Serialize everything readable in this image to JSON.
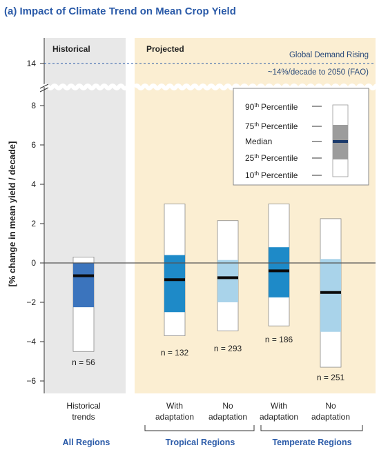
{
  "chart_data": {
    "type": "box",
    "title": "(a) Impact of Climate Trend on Mean Crop Yield",
    "ylabel": "[% change in mean yield / decade]",
    "yticks_lower": [
      -6,
      -4,
      -2,
      0,
      2,
      4,
      6,
      8
    ],
    "ytick_upper": 14,
    "ylim": [
      -6.5,
      14.5
    ],
    "panels": [
      {
        "label": "Historical"
      },
      {
        "label": "Projected"
      }
    ],
    "reference_line": {
      "value": 14,
      "label_line1": "Global Demand Rising",
      "label_line2": "~14%/decade to 2050 (FAO)"
    },
    "legend": {
      "p90": "90",
      "p75": "75",
      "th": "th",
      "percentile": "Percentile",
      "median": "Median",
      "p25": "25",
      "p10": "10"
    },
    "boxes": [
      {
        "id": "historical",
        "label_line1": "Historical",
        "label_line2": "trends",
        "n_label": "n = 56",
        "p10": -4.5,
        "p25": -2.25,
        "median": -0.65,
        "p75": 0.0,
        "p90": 0.3,
        "color": "#3b74bd"
      },
      {
        "id": "trop-adapt",
        "label_line1": "With",
        "label_line2": "adaptation",
        "n_label": "n = 132",
        "p10": -3.7,
        "p25": -2.5,
        "median": -0.85,
        "p75": 0.4,
        "p90": 3.0,
        "color": "#1e8ac8"
      },
      {
        "id": "trop-noadapt",
        "label_line1": "No",
        "label_line2": "adaptation",
        "n_label": "n = 293",
        "p10": -3.45,
        "p25": -2.0,
        "median": -0.75,
        "p75": 0.15,
        "p90": 2.15,
        "color": "#a9d3ea"
      },
      {
        "id": "temp-adapt",
        "label_line1": "With",
        "label_line2": "adaptation",
        "n_label": "n = 186",
        "p10": -3.2,
        "p25": -1.75,
        "median": -0.4,
        "p75": 0.8,
        "p90": 3.0,
        "color": "#1e8ac8"
      },
      {
        "id": "temp-noadapt",
        "label_line1": "No",
        "label_line2": "adaptation",
        "n_label": "n = 251",
        "p10": -5.3,
        "p25": -3.5,
        "median": -1.5,
        "p75": 0.2,
        "p90": 2.25,
        "color": "#a9d3ea"
      }
    ],
    "groups": [
      {
        "label": "All Regions"
      },
      {
        "label": "Tropical Regions"
      },
      {
        "label": "Temperate Regions"
      }
    ]
  }
}
